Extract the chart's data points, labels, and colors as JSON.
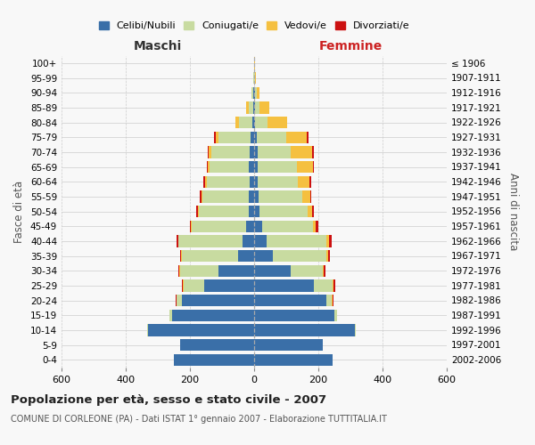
{
  "age_groups": [
    "0-4",
    "5-9",
    "10-14",
    "15-19",
    "20-24",
    "25-29",
    "30-34",
    "35-39",
    "40-44",
    "45-49",
    "50-54",
    "55-59",
    "60-64",
    "65-69",
    "70-74",
    "75-79",
    "80-84",
    "85-89",
    "90-94",
    "95-99",
    "100+"
  ],
  "birth_years": [
    "2002-2006",
    "1997-2001",
    "1992-1996",
    "1987-1991",
    "1982-1986",
    "1977-1981",
    "1972-1976",
    "1967-1971",
    "1962-1966",
    "1957-1961",
    "1952-1956",
    "1947-1951",
    "1942-1946",
    "1937-1941",
    "1932-1936",
    "1927-1931",
    "1922-1926",
    "1917-1921",
    "1912-1916",
    "1907-1911",
    "≤ 1906"
  ],
  "males": {
    "celibi": [
      250,
      230,
      330,
      255,
      225,
      155,
      110,
      50,
      35,
      25,
      18,
      16,
      15,
      16,
      15,
      10,
      5,
      4,
      2,
      1,
      0
    ],
    "coniugati": [
      0,
      0,
      2,
      8,
      18,
      65,
      120,
      175,
      200,
      170,
      155,
      145,
      132,
      122,
      118,
      100,
      42,
      14,
      5,
      2,
      1
    ],
    "vedovi": [
      0,
      0,
      0,
      0,
      0,
      2,
      2,
      2,
      2,
      2,
      3,
      4,
      5,
      6,
      8,
      10,
      12,
      6,
      2,
      0,
      0
    ],
    "divorziati": [
      0,
      0,
      0,
      0,
      2,
      4,
      5,
      4,
      4,
      4,
      5,
      5,
      5,
      4,
      4,
      4,
      0,
      0,
      0,
      0,
      0
    ]
  },
  "females": {
    "nubili": [
      245,
      215,
      315,
      250,
      225,
      185,
      115,
      58,
      38,
      25,
      18,
      14,
      12,
      12,
      10,
      8,
      4,
      3,
      2,
      1,
      0
    ],
    "coniugate": [
      0,
      0,
      2,
      8,
      18,
      60,
      100,
      168,
      188,
      158,
      148,
      135,
      125,
      120,
      105,
      92,
      38,
      14,
      6,
      2,
      1
    ],
    "vedove": [
      0,
      0,
      0,
      0,
      1,
      2,
      3,
      5,
      8,
      10,
      15,
      25,
      35,
      50,
      65,
      65,
      60,
      30,
      8,
      3,
      1
    ],
    "divorziate": [
      0,
      0,
      0,
      0,
      2,
      5,
      5,
      5,
      8,
      8,
      5,
      5,
      5,
      5,
      5,
      5,
      0,
      0,
      0,
      0,
      0
    ]
  },
  "colors": {
    "celibi": "#3a6fa8",
    "coniugati": "#c8dba0",
    "vedovi": "#f5c040",
    "divorziati": "#cc1111"
  },
  "legend_labels": [
    "Celibi/Nubili",
    "Coniugati/e",
    "Vedovi/e",
    "Divorziati/e"
  ],
  "title": "Popolazione per età, sesso e stato civile - 2007",
  "subtitle": "COMUNE DI CORLEONE (PA) - Dati ISTAT 1° gennaio 2007 - Elaborazione TUTTITALIA.IT",
  "xlabel_left": "Maschi",
  "xlabel_right": "Femmine",
  "ylabel_left": "Fasce di età",
  "ylabel_right": "Anni di nascita",
  "xlim": 600,
  "background_color": "#f8f8f8",
  "grid_color": "#cccccc"
}
